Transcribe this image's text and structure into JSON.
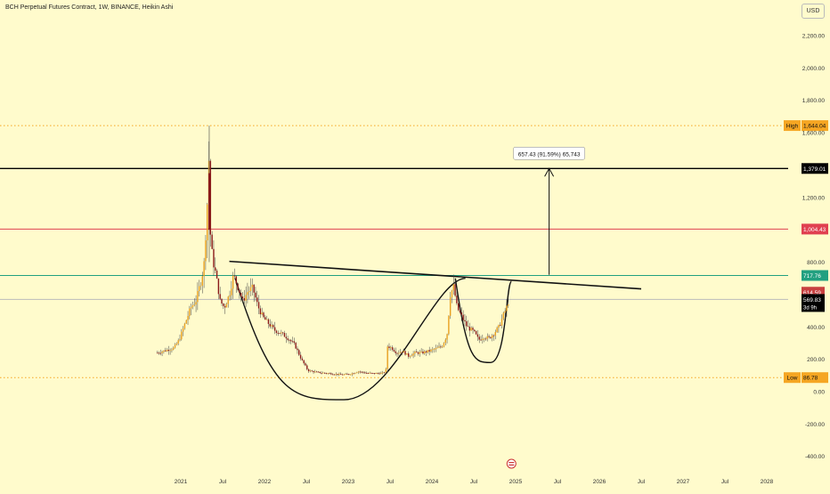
{
  "header": {
    "title": "BCH Perpetual Futures Contract, 1W, BINANCE, Heikin Ashi"
  },
  "toolbar": {
    "currency_label": "USD"
  },
  "colors": {
    "background": "#fffbcc",
    "up": "#e8a020",
    "down": "#8a1a1a",
    "orange": "#f5a623",
    "red": "#e04050",
    "green": "#22a080",
    "black": "#000000",
    "grey": "#bbbbbb"
  },
  "chart_data": {
    "type": "candlestick",
    "ylim": [
      -400,
      2400
    ],
    "y_ticks": [
      "2,200.00",
      "2,000.00",
      "1,800.00",
      "1,600.00",
      "1,400.00",
      "1,200.00",
      "1,000.00",
      "800.00",
      "600.00",
      "400.00",
      "200.00",
      "0.00",
      "-200.00",
      "-400.00"
    ],
    "y_tick_values": [
      2200,
      2000,
      1800,
      1600,
      1400,
      1200,
      1000,
      800,
      600,
      400,
      200,
      0,
      -200,
      -400
    ],
    "x_ticks": [
      "2021",
      "Jul",
      "2022",
      "Jul",
      "2023",
      "Jul",
      "2024",
      "Jul",
      "2025",
      "Jul",
      "2026",
      "Jul",
      "2027",
      "Jul",
      "2028"
    ],
    "x_tick_values": [
      2021.0,
      2021.5,
      2022.0,
      2022.5,
      2023.0,
      2023.5,
      2024.0,
      2024.5,
      2025.0,
      2025.5,
      2026.0,
      2026.5,
      2027.0,
      2027.5,
      2028.0
    ],
    "price_series_path": [
      [
        2020.72,
        240
      ],
      [
        2020.82,
        255
      ],
      [
        2020.92,
        270
      ],
      [
        2020.98,
        320
      ],
      [
        2021.05,
        420
      ],
      [
        2021.12,
        520
      ],
      [
        2021.18,
        560
      ],
      [
        2021.25,
        700
      ],
      [
        2021.28,
        800
      ],
      [
        2021.32,
        1200
      ],
      [
        2021.34,
        1500
      ],
      [
        2021.35,
        1000
      ],
      [
        2021.38,
        820
      ],
      [
        2021.42,
        720
      ],
      [
        2021.47,
        560
      ],
      [
        2021.52,
        520
      ],
      [
        2021.58,
        600
      ],
      [
        2021.63,
        720
      ],
      [
        2021.68,
        650
      ],
      [
        2021.74,
        560
      ],
      [
        2021.8,
        620
      ],
      [
        2021.86,
        640
      ],
      [
        2021.92,
        530
      ],
      [
        2021.98,
        460
      ],
      [
        2022.05,
        420
      ],
      [
        2022.12,
        380
      ],
      [
        2022.2,
        360
      ],
      [
        2022.28,
        330
      ],
      [
        2022.36,
        290
      ],
      [
        2022.44,
        200
      ],
      [
        2022.52,
        130
      ],
      [
        2022.62,
        120
      ],
      [
        2022.72,
        115
      ],
      [
        2022.82,
        110
      ],
      [
        2022.92,
        105
      ],
      [
        2023.02,
        108
      ],
      [
        2023.12,
        125
      ],
      [
        2023.22,
        115
      ],
      [
        2023.32,
        112
      ],
      [
        2023.42,
        115
      ],
      [
        2023.45,
        130
      ],
      [
        2023.47,
        280
      ],
      [
        2023.52,
        270
      ],
      [
        2023.58,
        240
      ],
      [
        2023.65,
        250
      ],
      [
        2023.72,
        220
      ],
      [
        2023.8,
        240
      ],
      [
        2023.88,
        240
      ],
      [
        2023.96,
        250
      ],
      [
        2024.05,
        265
      ],
      [
        2024.12,
        280
      ],
      [
        2024.18,
        350
      ],
      [
        2024.22,
        600
      ],
      [
        2024.26,
        650
      ],
      [
        2024.3,
        520
      ],
      [
        2024.36,
        460
      ],
      [
        2024.42,
        400
      ],
      [
        2024.5,
        370
      ],
      [
        2024.56,
        320
      ],
      [
        2024.62,
        340
      ],
      [
        2024.68,
        330
      ],
      [
        2024.74,
        360
      ],
      [
        2024.8,
        400
      ],
      [
        2024.86,
        480
      ],
      [
        2024.9,
        530
      ],
      [
        2024.92,
        570
      ]
    ],
    "high_wick": {
      "x": 2021.34,
      "low": 800,
      "high": 1644.04
    },
    "horizontal_lines": [
      {
        "label": "High",
        "value": 1644.04,
        "value_label": "1,644.04",
        "style": "dotted",
        "color": "#f5a623"
      },
      {
        "value": 1379.01,
        "value_label": "1,379.01",
        "style": "solid",
        "color": "#000000"
      },
      {
        "value": 1004.43,
        "value_label": "1,004.43",
        "style": "solid",
        "color": "#e04050"
      },
      {
        "value": 717.76,
        "value_label": "717.76",
        "style": "solid",
        "color": "#22a080"
      },
      {
        "value": 569.83,
        "value_label": "569.83",
        "style": "solid",
        "color": "#bbbbbb"
      },
      {
        "label": "Low",
        "value": 86.78,
        "value_label": "86.78",
        "style": "dotted",
        "color": "#f5a623"
      }
    ],
    "price_tags": [
      {
        "value": 614.59,
        "value_label": "614.59",
        "color": "#c84040"
      },
      {
        "value": 569.83,
        "value_label": "569.83",
        "sub_label": "3d 9h",
        "color": "#000000"
      }
    ],
    "drawings": {
      "trendline": [
        [
          2021.58,
          805
        ],
        [
          2026.5,
          635
        ]
      ],
      "cup": {
        "from": [
          2021.65,
          700
        ],
        "bottom": [
          2022.95,
          -50
        ],
        "to": [
          2024.4,
          700
        ]
      },
      "handle": {
        "from": [
          2024.28,
          700
        ],
        "bottom": [
          2024.7,
          180
        ],
        "to": [
          2024.95,
          680
        ]
      },
      "measure_arrow": {
        "x": 2025.4,
        "from": 722,
        "to": 1379.01,
        "label": "657.43 (91.59%) 65,743"
      }
    }
  }
}
